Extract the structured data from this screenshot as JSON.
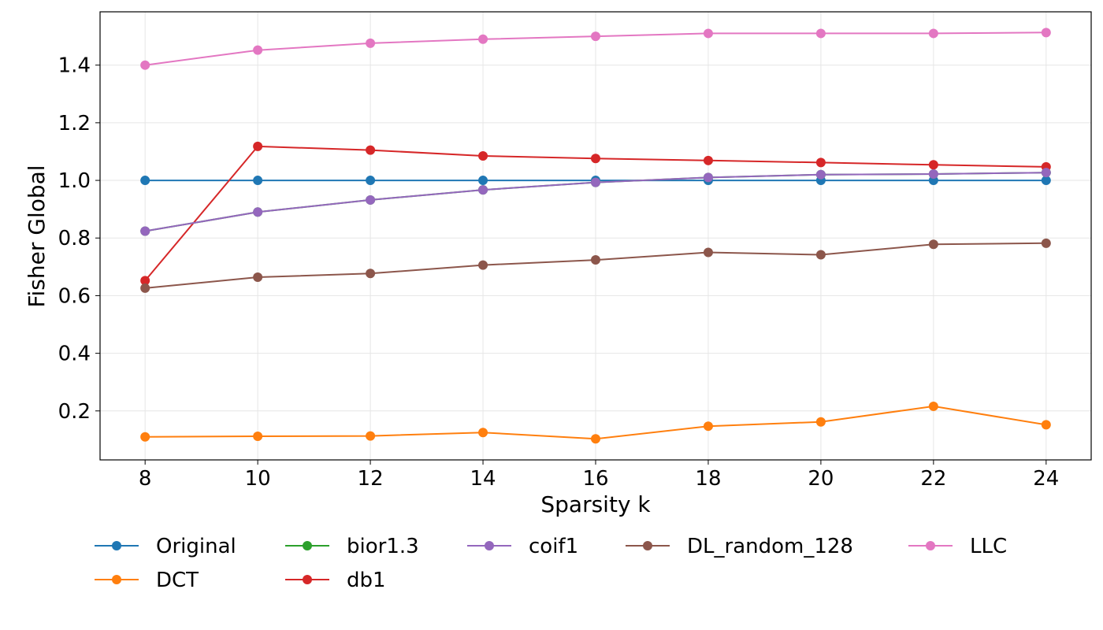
{
  "chart_data": {
    "type": "line",
    "title": "",
    "xlabel": "Sparsity k",
    "ylabel": "Fisher Global",
    "x": [
      8,
      10,
      12,
      14,
      16,
      18,
      20,
      22,
      24
    ],
    "xticks": [
      8,
      10,
      12,
      14,
      16,
      18,
      20,
      22,
      24
    ],
    "yticks": [
      0.2,
      0.4,
      0.6,
      0.8,
      1.0,
      1.2,
      1.4
    ],
    "xlim": [
      7.2,
      24.8
    ],
    "ylim": [
      0.03,
      1.585
    ],
    "grid": true,
    "legend_position": "bottom",
    "series": [
      {
        "name": "Original",
        "color": "#1f77b4",
        "values": [
          1.0,
          1.0,
          1.0,
          1.0,
          1.0,
          1.0,
          1.0,
          1.0,
          1.0
        ]
      },
      {
        "name": "DCT",
        "color": "#ff7f0e",
        "values": [
          0.11,
          0.112,
          0.113,
          0.125,
          0.103,
          0.147,
          0.162,
          0.216,
          0.152
        ]
      },
      {
        "name": "bior1.3",
        "color": "#2ca02c",
        "values": [
          0.824,
          0.89,
          0.932,
          0.967,
          0.993,
          1.01,
          1.02,
          1.022,
          1.027
        ]
      },
      {
        "name": "db1",
        "color": "#d62728",
        "values": [
          0.652,
          1.118,
          1.105,
          1.085,
          1.076,
          1.069,
          1.062,
          1.054,
          1.047
        ]
      },
      {
        "name": "coif1",
        "color": "#9467bd",
        "values": [
          0.824,
          0.89,
          0.932,
          0.967,
          0.993,
          1.01,
          1.02,
          1.022,
          1.027
        ]
      },
      {
        "name": "DL_random_128",
        "color": "#8c564b",
        "values": [
          0.626,
          0.664,
          0.677,
          0.706,
          0.724,
          0.75,
          0.742,
          0.778,
          0.782
        ]
      },
      {
        "name": "LLC",
        "color": "#e377c2",
        "values": [
          1.4,
          1.452,
          1.476,
          1.49,
          1.5,
          1.51,
          1.51,
          1.51,
          1.513
        ]
      }
    ]
  }
}
